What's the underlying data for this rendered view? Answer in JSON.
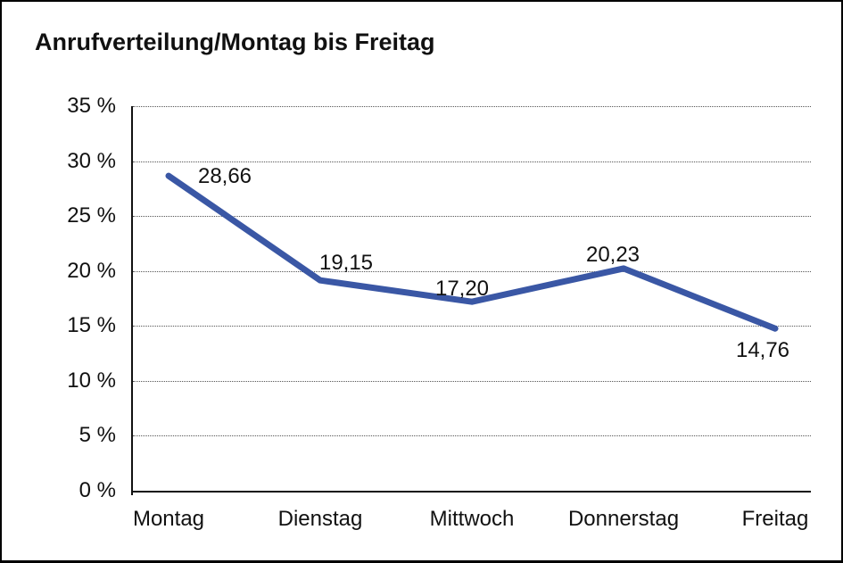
{
  "title": "Anrufverteilung/Montag bis Freitag",
  "colors": {
    "line": "#3A57A5",
    "axis": "#111111",
    "grid": "#555555",
    "text": "#111111",
    "background": "#ffffff",
    "border": "#000000"
  },
  "chart_data": {
    "type": "line",
    "title": "Anrufverteilung/Montag bis Freitag",
    "categories": [
      "Montag",
      "Dienstag",
      "Mittwoch",
      "Donnerstag",
      "Freitag"
    ],
    "values": [
      28.66,
      19.15,
      17.2,
      20.23,
      14.76
    ],
    "point_labels": [
      "28,66",
      "19,15",
      "17,20",
      "20,23",
      "14,76"
    ],
    "xlabel": "",
    "ylabel": "",
    "ylim": [
      0,
      35
    ],
    "ytick_step": 5,
    "ytick_labels": [
      "35 %",
      "30 %",
      "25 %",
      "20 %",
      "15 %",
      "10 %",
      "5 %",
      "0 %"
    ],
    "grid": "horizontal-dotted",
    "legend": "none",
    "line_color": "#3A57A5"
  }
}
